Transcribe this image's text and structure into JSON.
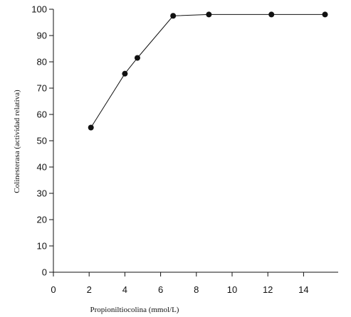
{
  "chart_data": {
    "type": "line",
    "title": "",
    "xlabel": "Propioniltiocolina (mmol/L)",
    "ylabel": "Colinesterasa (actividad relativa)",
    "xlim": [
      0,
      15.5
    ],
    "ylim": [
      0,
      100
    ],
    "xticks": [
      "0",
      "2",
      "4",
      "6",
      "8",
      "10",
      "12",
      "14"
    ],
    "yticks": [
      "0",
      "10",
      "20",
      "30",
      "40",
      "50",
      "60",
      "70",
      "80",
      "90",
      "100"
    ],
    "grid": false,
    "legend": "none",
    "series": [
      {
        "x": [
          2.1,
          4.0,
          4.7,
          6.7,
          8.7,
          12.2,
          15.2
        ],
        "y": [
          55,
          75.5,
          81.5,
          97.5,
          98,
          98,
          98
        ],
        "color": "#111111",
        "marker": "circle"
      }
    ]
  }
}
